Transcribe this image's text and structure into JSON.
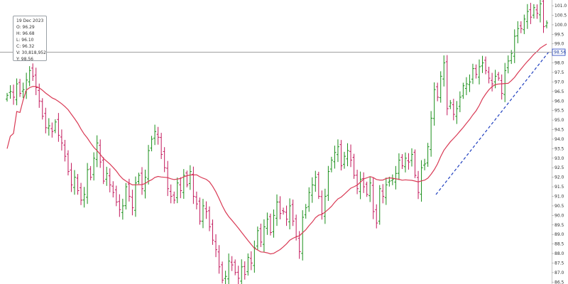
{
  "tooltip": {
    "date": "19 Dec 2023",
    "open": "O: 96.29",
    "high": "H: 96.68",
    "low": "L: 96.10",
    "close": "C: 96.32",
    "volume": "V: 30,818,952",
    "y": "Y: 98.56"
  },
  "colors": {
    "up": "#1a8f1a",
    "down": "#c2185b",
    "ma_line": "#d93a55",
    "trendline": "#1f3fbf",
    "crosshair": "#a0a0a0",
    "axis_border": "#c8c8c8"
  },
  "chart_data": {
    "type": "ohlc",
    "ylim": [
      86.4,
      101.3
    ],
    "y_ticks": [
      "101.0",
      "100.5",
      "100.0",
      "99.5",
      "99.0",
      "98.5",
      "98.0",
      "97.5",
      "97.0",
      "96.5",
      "96.0",
      "95.5",
      "95.0",
      "94.5",
      "94.0",
      "93.5",
      "93.0",
      "92.5",
      "92.0",
      "91.5",
      "91.0",
      "90.5",
      "90.0",
      "89.5",
      "89.0",
      "88.5",
      "88.0",
      "87.5",
      "87.0",
      "86.5"
    ],
    "crosshair_y": 98.56,
    "crosshair_label": "98.56",
    "close": [
      96.3,
      96.5,
      96.2,
      96.9,
      96.4,
      96.6,
      97.1,
      97.6,
      97.3,
      96.7,
      96.0,
      95.2,
      94.6,
      94.7,
      94.4,
      94.9,
      94.2,
      93.8,
      93.1,
      92.3,
      91.6,
      92.0,
      91.3,
      90.8,
      91.1,
      92.4,
      92.0,
      93.0,
      93.8,
      92.8,
      91.8,
      92.2,
      91.6,
      91.2,
      90.7,
      90.3,
      90.5,
      91.5,
      91.0,
      90.4,
      91.7,
      92.1,
      91.4,
      92.0,
      93.4,
      94.0,
      94.4,
      94.1,
      93.2,
      92.5,
      91.4,
      91.0,
      90.8,
      91.7,
      91.3,
      92.1,
      91.6,
      92.3,
      91.0,
      90.6,
      89.7,
      90.5,
      90.2,
      89.4,
      88.7,
      88.2,
      87.3,
      86.6,
      86.8,
      87.6,
      87.4,
      87.0,
      86.7,
      87.3,
      86.9,
      87.8,
      87.5,
      88.3,
      89.2,
      88.6,
      89.4,
      89.8,
      89.1,
      90.0,
      90.7,
      90.1,
      90.2,
      89.8,
      90.5,
      89.7,
      88.9,
      88.1,
      89.9,
      90.4,
      91.2,
      91.6,
      92.0,
      91.0,
      90.1,
      91.0,
      92.3,
      92.9,
      93.3,
      93.6,
      92.6,
      93.1,
      93.4,
      92.9,
      92.1,
      91.4,
      91.9,
      91.5,
      91.1,
      91.7,
      90.2,
      89.6,
      91.4,
      91.0,
      91.6,
      91.8,
      91.9,
      92.2,
      92.9,
      92.6,
      93.0,
      92.8,
      93.2,
      92.1,
      91.2,
      92.5,
      92.7,
      93.6,
      95.1,
      96.6,
      96.2,
      97.3,
      98.0,
      95.6,
      95.9,
      95.3,
      95.6,
      96.2,
      96.8,
      96.9,
      97.0,
      97.7,
      97.4,
      97.8,
      98.0,
      97.6,
      97.2,
      96.9,
      97.3,
      97.2,
      96.4,
      97.6,
      98.1,
      98.5,
      99.4,
      99.8,
      99.8,
      100.3,
      100.7,
      100.4,
      100.9,
      100.6,
      101.1,
      99.9,
      100.1
    ]
  }
}
